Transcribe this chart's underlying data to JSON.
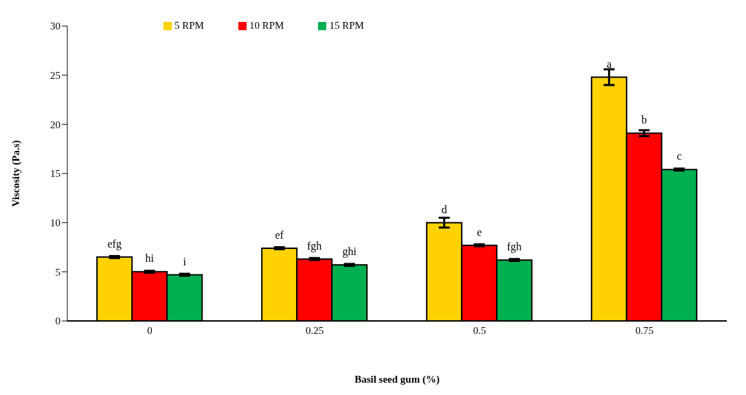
{
  "chart_data": {
    "type": "bar",
    "xlabel": "Basil seed gum (%)",
    "ylabel": "Viscosity (Pa.s)",
    "categories": [
      "0",
      "0.25",
      "0.5",
      "0.75"
    ],
    "series": [
      {
        "name": "5 RPM",
        "color": "#ffd200",
        "values": [
          6.5,
          7.4,
          10.0,
          24.8
        ],
        "errors": [
          0.1,
          0.1,
          0.5,
          0.8
        ],
        "value_labels": [
          "efg",
          "ef",
          "d",
          "a"
        ]
      },
      {
        "name": "10 RPM",
        "color": "#ff0000",
        "values": [
          5.0,
          6.3,
          7.7,
          19.1
        ],
        "errors": [
          0.1,
          0.1,
          0.1,
          0.3
        ],
        "value_labels": [
          "hi",
          "fgh",
          "e",
          "b"
        ]
      },
      {
        "name": "15 RPM",
        "color": "#00b050",
        "values": [
          4.7,
          5.7,
          6.2,
          15.4
        ],
        "errors": [
          0.1,
          0.1,
          0.1,
          0.1
        ],
        "value_labels": [
          "i",
          "ghi",
          "fgh",
          "c"
        ]
      }
    ],
    "ylim": [
      0,
      30
    ],
    "yticks": [
      0,
      5,
      10,
      15,
      20,
      25,
      30
    ],
    "grid": false,
    "legend": "top left"
  }
}
